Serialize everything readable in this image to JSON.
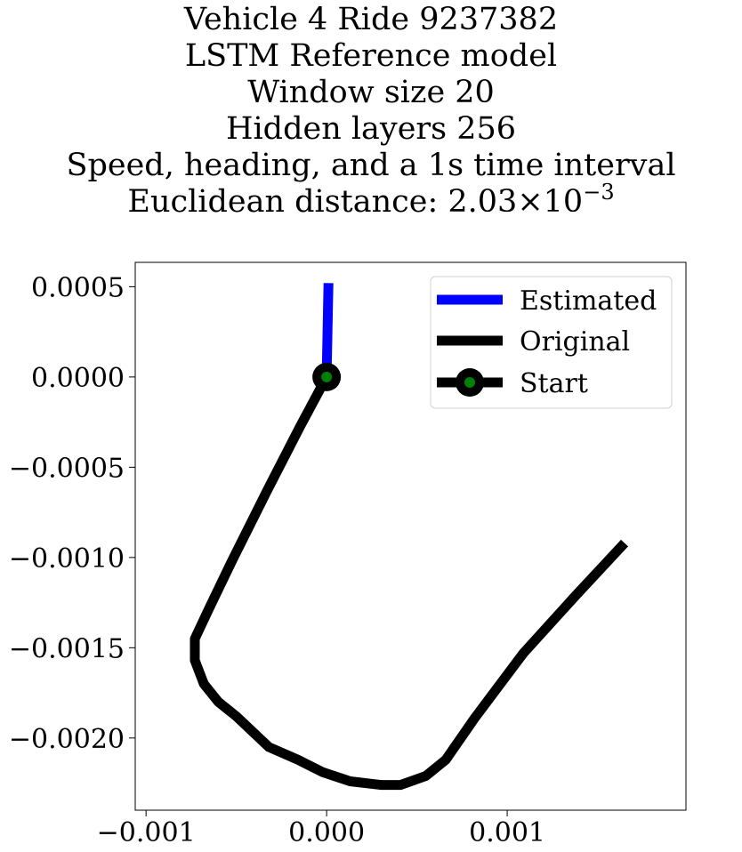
{
  "chart_data": {
    "type": "line",
    "title_lines": [
      "Vehicle 4 Ride 9237382",
      "LSTM Reference model",
      "Window size 20",
      "Hidden layers 256",
      "Speed, heading, and a 1s time interval"
    ],
    "title_distance_prefix": "Euclidean distance: 2.03",
    "title_distance_times": "×",
    "title_distance_base": "10",
    "title_distance_exponent": "−3",
    "xlim": [
      -0.00106,
      0.00199
    ],
    "ylim": [
      -0.0024,
      0.000635
    ],
    "xticks": [
      {
        "value": -0.001,
        "label": "−0.001"
      },
      {
        "value": 0.0,
        "label": "0.000"
      },
      {
        "value": 0.001,
        "label": "0.001"
      }
    ],
    "yticks": [
      {
        "value": 0.0005,
        "label": "0.0005"
      },
      {
        "value": 0.0,
        "label": "0.0000"
      },
      {
        "value": -0.0005,
        "label": "−0.0005"
      },
      {
        "value": -0.001,
        "label": "−0.0010"
      },
      {
        "value": -0.0015,
        "label": "−0.0015"
      },
      {
        "value": -0.002,
        "label": "−0.0020"
      }
    ],
    "grid": false,
    "legend_position": "top-right",
    "series": [
      {
        "name": "Estimated",
        "color": "#0000ff",
        "x": [
          0.0,
          1e-05
        ],
        "y": [
          0.0,
          0.00052
        ]
      },
      {
        "name": "Original",
        "color": "#000000",
        "x": [
          0.0,
          -0.00015,
          -0.00033,
          -0.00052,
          -0.00065,
          -0.00073,
          -0.00073,
          -0.00068,
          -0.0006,
          -0.0005,
          -0.00032,
          -0.00016,
          -2e-05,
          0.00013,
          0.0003,
          0.00041,
          0.00055,
          0.00066,
          0.00082,
          0.00109,
          0.00138,
          0.00165
        ],
        "y": [
          0.0,
          -0.00028,
          -0.00063,
          -0.00101,
          -0.00128,
          -0.00145,
          -0.00157,
          -0.0017,
          -0.0018,
          -0.00188,
          -0.00205,
          -0.00212,
          -0.00219,
          -0.00224,
          -0.00226,
          -0.00226,
          -0.00221,
          -0.00212,
          -0.00189,
          -0.00153,
          -0.00121,
          -0.00092
        ]
      },
      {
        "name": "Start",
        "color": "#000000",
        "marker_face": "#008000",
        "x": [
          0.0
        ],
        "y": [
          0.0
        ]
      }
    ]
  }
}
